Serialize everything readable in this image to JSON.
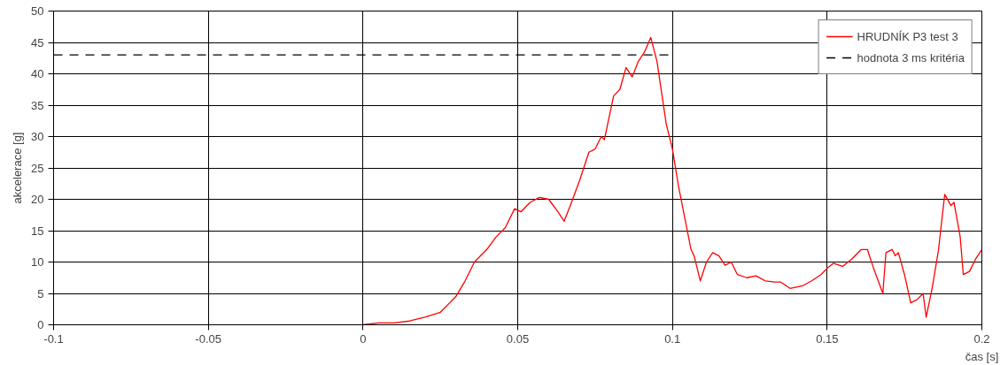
{
  "chart_data": {
    "type": "line",
    "xlabel": "čas [s]",
    "ylabel": "akcelerace [g]",
    "xlim": [
      -0.1,
      0.2
    ],
    "xticks": [
      -0.1,
      -0.05,
      0,
      0.05,
      0.1,
      0.15,
      0.2
    ],
    "ylim": [
      0,
      50
    ],
    "yticks": [
      0,
      5,
      10,
      15,
      20,
      25,
      30,
      35,
      40,
      45,
      50
    ],
    "grid": true,
    "legend": "top right",
    "marker": "none",
    "series": [
      {
        "name": "HRUDNÍK P3 test 3",
        "color": "#ff0000",
        "line_style": "solid",
        "x": [
          0,
          0.005,
          0.01,
          0.015,
          0.02,
          0.025,
          0.028,
          0.03,
          0.033,
          0.036,
          0.04,
          0.043,
          0.046,
          0.049,
          0.051,
          0.054,
          0.057,
          0.06,
          0.063,
          0.065,
          0.067,
          0.07,
          0.073,
          0.075,
          0.077,
          0.078,
          0.081,
          0.083,
          0.085,
          0.087,
          0.089,
          0.091,
          0.093,
          0.095,
          0.098,
          0.1,
          0.102,
          0.104,
          0.106,
          0.107,
          0.109,
          0.111,
          0.113,
          0.115,
          0.117,
          0.119,
          0.121,
          0.124,
          0.127,
          0.13,
          0.133,
          0.135,
          0.138,
          0.14,
          0.142,
          0.145,
          0.148,
          0.15,
          0.152,
          0.155,
          0.158,
          0.161,
          0.163,
          0.165,
          0.168,
          0.169,
          0.171,
          0.172,
          0.173,
          0.175,
          0.177,
          0.179,
          0.181,
          0.182,
          0.184,
          0.186,
          0.188,
          0.19,
          0.191,
          0.193,
          0.194,
          0.196,
          0.198,
          0.2
        ],
        "values": [
          0,
          0.3,
          0.3,
          0.6,
          1.2,
          2,
          3.5,
          4.5,
          7,
          10,
          12,
          14,
          15.5,
          18.5,
          18,
          19.5,
          20.3,
          20,
          18,
          16.5,
          19,
          23,
          27.5,
          28,
          30,
          29.5,
          36.5,
          37.5,
          41,
          39.5,
          42,
          43.5,
          45.8,
          42,
          32,
          28,
          22,
          17,
          12,
          11,
          7,
          10,
          11.5,
          11,
          9.5,
          10,
          8,
          7.5,
          7.8,
          7,
          6.8,
          6.8,
          5.8,
          6,
          6.2,
          7,
          8,
          9,
          9.8,
          9.3,
          10.5,
          12,
          12,
          9,
          5,
          11.5,
          12,
          11,
          11.5,
          8,
          3.5,
          4,
          5,
          1.2,
          6,
          12,
          20.8,
          19,
          19.5,
          14,
          8,
          8.5,
          10.5,
          12
        ]
      },
      {
        "name": "hodnota 3 ms kritéria",
        "color": "#000000",
        "line_style": "dashed",
        "x": [
          -0.1,
          0.1
        ],
        "values": [
          43,
          43
        ]
      }
    ]
  }
}
